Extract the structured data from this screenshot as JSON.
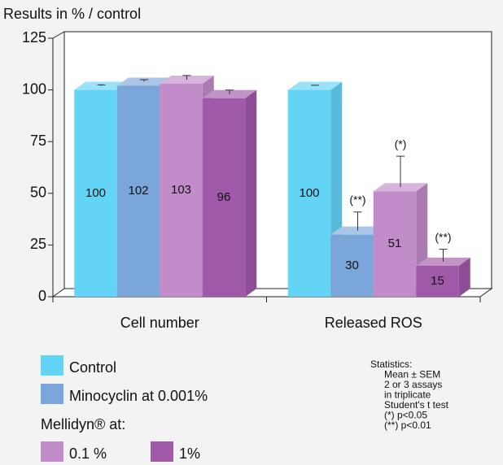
{
  "chart_data": {
    "type": "bar3d",
    "title": "Results in % / control",
    "categories": [
      "Cell number",
      "Released ROS"
    ],
    "series": [
      {
        "name": "Control",
        "color": "#63d3f6",
        "values": [
          100,
          100
        ],
        "errors": [
          0.5,
          0.3
        ]
      },
      {
        "name": "Minocyclin at 0.001%",
        "color": "#7aa6da",
        "values": [
          102,
          30
        ],
        "errors": [
          1,
          9
        ]
      },
      {
        "name": "0.1 %",
        "color": "#c18cc9",
        "values": [
          103,
          51
        ],
        "errors": [
          2,
          15
        ]
      },
      {
        "name": "1%",
        "color": "#a059a9",
        "values": [
          96,
          15
        ],
        "errors": [
          2,
          6
        ]
      }
    ],
    "annotations": [
      {
        "text": "(**)",
        "series": 1,
        "category": 1
      },
      {
        "text": "(*)",
        "series": 2,
        "category": 1
      },
      {
        "text": "(**)",
        "series": 3,
        "category": 1
      }
    ],
    "legend_title": "Mellidyn® at:",
    "statistics": [
      "Statistics:",
      "Mean ± SEM",
      "2 or 3 assays",
      "in triplicate",
      "Student's t test",
      "(*) p<0.05",
      "(**) p<0.01"
    ],
    "ylim": [
      0,
      125
    ],
    "yticks": [
      0,
      25,
      50,
      75,
      100,
      125
    ]
  }
}
